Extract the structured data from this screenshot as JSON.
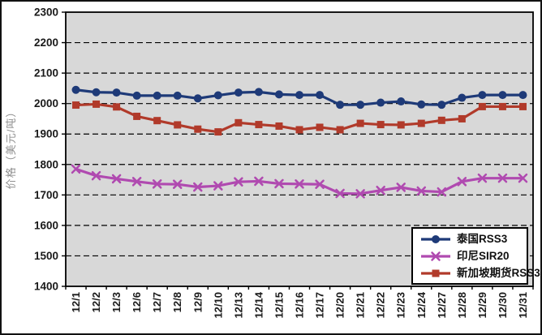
{
  "window": {
    "background": "#ffffff",
    "border_color": "#111111",
    "plot_background": "#d8d8d8",
    "gridline_color": "#000000",
    "axis_color": "#000000",
    "tick_label_color": "#1a1a1a",
    "y_title_color": "#8f8f8f"
  },
  "chart_data": {
    "type": "line",
    "title": "",
    "xlabel": "",
    "ylabel": "价格（美元/吨）",
    "ylim": [
      1400,
      2300
    ],
    "ytick_step": 100,
    "yticks": [
      2300,
      2200,
      2100,
      2000,
      1900,
      1800,
      1700,
      1600,
      1500,
      1400
    ],
    "grid": "horizontal-dashed",
    "legend_position": "bottom-right",
    "categories": [
      "12/1",
      "12/2",
      "12/3",
      "12/6",
      "12/7",
      "12/8",
      "12/9",
      "12/10",
      "12/13",
      "12/14",
      "12/15",
      "12/16",
      "12/17",
      "12/20",
      "12/21",
      "12/22",
      "12/23",
      "12/24",
      "12/27",
      "12/28",
      "12/29",
      "12/30",
      "12/31"
    ],
    "series": [
      {
        "name": "泰国RSS3",
        "color": "#1e3a78",
        "marker": "circle",
        "values": [
          2045,
          2037,
          2036,
          2026,
          2026,
          2026,
          2017,
          2027,
          2036,
          2038,
          2030,
          2028,
          2028,
          1996,
          1996,
          2003,
          2007,
          1997,
          1996,
          2019,
          2028,
          2028,
          2028
        ]
      },
      {
        "name": "印尼SIR20",
        "color": "#b04ab0",
        "marker": "x",
        "values": [
          1785,
          1763,
          1753,
          1744,
          1736,
          1735,
          1726,
          1730,
          1743,
          1745,
          1737,
          1736,
          1735,
          1705,
          1704,
          1715,
          1725,
          1713,
          1710,
          1744,
          1755,
          1755,
          1755
        ]
      },
      {
        "name": "新加坡期货RSS3",
        "color": "#b13a2a",
        "marker": "square",
        "values": [
          1995,
          1998,
          1989,
          1958,
          1944,
          1930,
          1916,
          1907,
          1937,
          1931,
          1926,
          1914,
          1922,
          1914,
          1935,
          1931,
          1930,
          1935,
          1945,
          1950,
          1990,
          1990,
          1990
        ]
      }
    ]
  }
}
